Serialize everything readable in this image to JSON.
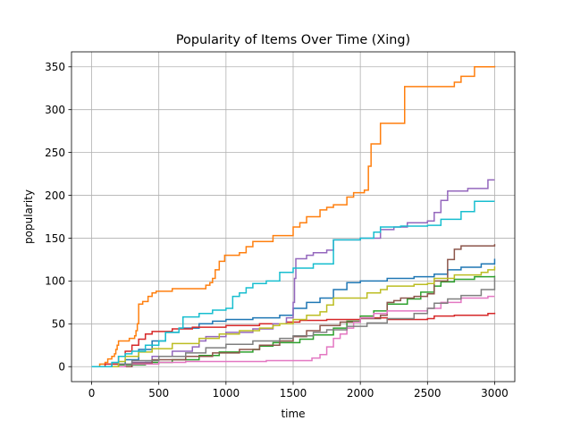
{
  "chart_data": {
    "type": "line",
    "title": "Popularity of Items Over Time (Xing)",
    "xlabel": "time",
    "ylabel": "popularity",
    "xlim": [
      -150,
      3150
    ],
    "ylim": [
      -17.5,
      367.5
    ],
    "xticks": [
      0,
      500,
      1000,
      1500,
      2000,
      2500,
      3000
    ],
    "yticks": [
      0,
      50,
      100,
      150,
      200,
      250,
      300,
      350
    ],
    "grid": true,
    "step": true,
    "colors": [
      "#1f77b4",
      "#ff7f0e",
      "#2ca02c",
      "#d62728",
      "#9467bd",
      "#8c564b",
      "#e377c2",
      "#7f7f7f",
      "#bcbd22",
      "#17becf"
    ],
    "series": [
      {
        "points": [
          [
            0,
            0
          ],
          [
            150,
            3
          ],
          [
            250,
            8
          ],
          [
            350,
            20
          ],
          [
            450,
            30
          ],
          [
            550,
            40
          ],
          [
            650,
            45
          ],
          [
            800,
            50
          ],
          [
            900,
            53
          ],
          [
            1000,
            55
          ],
          [
            1200,
            57
          ],
          [
            1400,
            60
          ],
          [
            1500,
            68
          ],
          [
            1600,
            75
          ],
          [
            1700,
            80
          ],
          [
            1800,
            90
          ],
          [
            1900,
            98
          ],
          [
            2000,
            100
          ],
          [
            2200,
            103
          ],
          [
            2400,
            105
          ],
          [
            2550,
            108
          ],
          [
            2650,
            113
          ],
          [
            2750,
            116
          ],
          [
            2900,
            120
          ],
          [
            3000,
            126
          ]
        ]
      },
      {
        "points": [
          [
            0,
            0
          ],
          [
            60,
            3
          ],
          [
            100,
            5
          ],
          [
            120,
            9
          ],
          [
            150,
            12
          ],
          [
            170,
            15
          ],
          [
            180,
            20
          ],
          [
            190,
            25
          ],
          [
            200,
            30
          ],
          [
            280,
            33
          ],
          [
            320,
            36
          ],
          [
            330,
            42
          ],
          [
            340,
            50
          ],
          [
            350,
            73
          ],
          [
            380,
            76
          ],
          [
            420,
            82
          ],
          [
            450,
            86
          ],
          [
            480,
            88
          ],
          [
            600,
            91
          ],
          [
            850,
            95
          ],
          [
            880,
            98
          ],
          [
            900,
            103
          ],
          [
            920,
            113
          ],
          [
            950,
            123
          ],
          [
            990,
            130
          ],
          [
            1100,
            133
          ],
          [
            1150,
            140
          ],
          [
            1200,
            146
          ],
          [
            1350,
            153
          ],
          [
            1500,
            163
          ],
          [
            1550,
            168
          ],
          [
            1600,
            175
          ],
          [
            1700,
            183
          ],
          [
            1750,
            186
          ],
          [
            1800,
            189
          ],
          [
            1900,
            198
          ],
          [
            1950,
            203
          ],
          [
            2030,
            206
          ],
          [
            2060,
            234
          ],
          [
            2080,
            260
          ],
          [
            2150,
            284
          ],
          [
            2330,
            327
          ],
          [
            2700,
            332
          ],
          [
            2750,
            339
          ],
          [
            2850,
            350
          ],
          [
            3000,
            351
          ]
        ]
      },
      {
        "points": [
          [
            0,
            0
          ],
          [
            200,
            2
          ],
          [
            400,
            5
          ],
          [
            600,
            8
          ],
          [
            800,
            13
          ],
          [
            950,
            17
          ],
          [
            1200,
            20
          ],
          [
            1250,
            24
          ],
          [
            1350,
            28
          ],
          [
            1550,
            32
          ],
          [
            1650,
            37
          ],
          [
            1800,
            45
          ],
          [
            1900,
            53
          ],
          [
            2000,
            59
          ],
          [
            2100,
            65
          ],
          [
            2200,
            73
          ],
          [
            2350,
            79
          ],
          [
            2450,
            87
          ],
          [
            2550,
            94
          ],
          [
            2600,
            99
          ],
          [
            2700,
            102
          ],
          [
            2850,
            105
          ],
          [
            3000,
            106
          ]
        ]
      },
      {
        "points": [
          [
            0,
            0
          ],
          [
            100,
            3
          ],
          [
            200,
            12
          ],
          [
            250,
            18
          ],
          [
            300,
            25
          ],
          [
            350,
            32
          ],
          [
            400,
            38
          ],
          [
            450,
            41
          ],
          [
            600,
            44
          ],
          [
            750,
            46
          ],
          [
            1000,
            48
          ],
          [
            1250,
            50
          ],
          [
            1450,
            52
          ],
          [
            1550,
            54
          ],
          [
            1750,
            55
          ],
          [
            2000,
            57
          ],
          [
            2200,
            55
          ],
          [
            2500,
            56
          ],
          [
            2550,
            59
          ],
          [
            2700,
            60
          ],
          [
            2950,
            62
          ],
          [
            3000,
            63
          ]
        ]
      },
      {
        "points": [
          [
            0,
            0
          ],
          [
            300,
            5
          ],
          [
            450,
            12
          ],
          [
            600,
            18
          ],
          [
            750,
            23
          ],
          [
            800,
            30
          ],
          [
            850,
            35
          ],
          [
            1000,
            40
          ],
          [
            1200,
            44
          ],
          [
            1350,
            50
          ],
          [
            1450,
            57
          ],
          [
            1500,
            75
          ],
          [
            1510,
            103
          ],
          [
            1520,
            126
          ],
          [
            1600,
            130
          ],
          [
            1650,
            133
          ],
          [
            1750,
            136
          ],
          [
            1800,
            148
          ],
          [
            2000,
            150
          ],
          [
            2150,
            160
          ],
          [
            2250,
            163
          ],
          [
            2350,
            168
          ],
          [
            2500,
            170
          ],
          [
            2550,
            180
          ],
          [
            2600,
            194
          ],
          [
            2650,
            205
          ],
          [
            2800,
            208
          ],
          [
            2950,
            218
          ],
          [
            3000,
            218
          ]
        ]
      },
      {
        "points": [
          [
            0,
            0
          ],
          [
            300,
            4
          ],
          [
            450,
            8
          ],
          [
            700,
            12
          ],
          [
            900,
            16
          ],
          [
            1100,
            20
          ],
          [
            1250,
            25
          ],
          [
            1400,
            30
          ],
          [
            1500,
            35
          ],
          [
            1600,
            42
          ],
          [
            1700,
            48
          ],
          [
            1850,
            52
          ],
          [
            2000,
            56
          ],
          [
            2150,
            60
          ],
          [
            2200,
            75
          ],
          [
            2250,
            77
          ],
          [
            2300,
            80
          ],
          [
            2400,
            82
          ],
          [
            2500,
            85
          ],
          [
            2550,
            100
          ],
          [
            2650,
            125
          ],
          [
            2700,
            137
          ],
          [
            2750,
            141
          ],
          [
            3000,
            143
          ]
        ]
      },
      {
        "points": [
          [
            0,
            0
          ],
          [
            250,
            3
          ],
          [
            500,
            5
          ],
          [
            700,
            6
          ],
          [
            1000,
            6
          ],
          [
            1300,
            7
          ],
          [
            1640,
            10
          ],
          [
            1700,
            14
          ],
          [
            1750,
            23
          ],
          [
            1800,
            33
          ],
          [
            1850,
            38
          ],
          [
            1900,
            45
          ],
          [
            1950,
            52
          ],
          [
            2000,
            57
          ],
          [
            2100,
            62
          ],
          [
            2200,
            65
          ],
          [
            2500,
            68
          ],
          [
            2600,
            75
          ],
          [
            2750,
            80
          ],
          [
            2950,
            82
          ],
          [
            3000,
            82
          ]
        ]
      },
      {
        "points": [
          [
            0,
            0
          ],
          [
            200,
            3
          ],
          [
            300,
            7
          ],
          [
            500,
            12
          ],
          [
            700,
            16
          ],
          [
            850,
            22
          ],
          [
            1000,
            26
          ],
          [
            1200,
            30
          ],
          [
            1400,
            33
          ],
          [
            1500,
            36
          ],
          [
            1650,
            40
          ],
          [
            1750,
            43
          ],
          [
            1900,
            47
          ],
          [
            2050,
            51
          ],
          [
            2200,
            56
          ],
          [
            2400,
            62
          ],
          [
            2500,
            68
          ],
          [
            2550,
            74
          ],
          [
            2650,
            79
          ],
          [
            2750,
            83
          ],
          [
            2900,
            90
          ],
          [
            3000,
            104
          ]
        ]
      },
      {
        "points": [
          [
            0,
            0
          ],
          [
            200,
            6
          ],
          [
            250,
            12
          ],
          [
            350,
            17
          ],
          [
            450,
            21
          ],
          [
            600,
            27
          ],
          [
            800,
            33
          ],
          [
            950,
            38
          ],
          [
            1100,
            42
          ],
          [
            1250,
            45
          ],
          [
            1350,
            48
          ],
          [
            1400,
            50
          ],
          [
            1500,
            55
          ],
          [
            1600,
            60
          ],
          [
            1700,
            64
          ],
          [
            1750,
            72
          ],
          [
            1800,
            80
          ],
          [
            2050,
            86
          ],
          [
            2150,
            90
          ],
          [
            2200,
            94
          ],
          [
            2400,
            96
          ],
          [
            2500,
            97
          ],
          [
            2550,
            103
          ],
          [
            2700,
            107
          ],
          [
            2900,
            110
          ],
          [
            2950,
            113
          ],
          [
            3000,
            117
          ]
        ]
      },
      {
        "points": [
          [
            0,
            0
          ],
          [
            150,
            5
          ],
          [
            200,
            12
          ],
          [
            250,
            15
          ],
          [
            300,
            18
          ],
          [
            400,
            25
          ],
          [
            500,
            30
          ],
          [
            550,
            40
          ],
          [
            650,
            45
          ],
          [
            680,
            58
          ],
          [
            800,
            62
          ],
          [
            900,
            66
          ],
          [
            1000,
            68
          ],
          [
            1050,
            82
          ],
          [
            1100,
            86
          ],
          [
            1150,
            92
          ],
          [
            1200,
            97
          ],
          [
            1300,
            100
          ],
          [
            1400,
            110
          ],
          [
            1500,
            115
          ],
          [
            1650,
            120
          ],
          [
            1800,
            148
          ],
          [
            2000,
            150
          ],
          [
            2100,
            157
          ],
          [
            2150,
            163
          ],
          [
            2300,
            164
          ],
          [
            2500,
            165
          ],
          [
            2600,
            172
          ],
          [
            2750,
            181
          ],
          [
            2850,
            193
          ],
          [
            3000,
            193
          ]
        ]
      }
    ]
  }
}
